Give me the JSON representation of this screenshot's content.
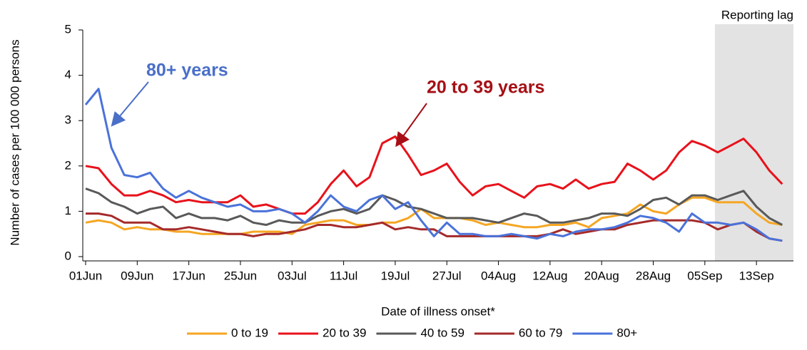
{
  "chart_data": {
    "type": "line",
    "y_label": "Number of cases per 100 000 persons",
    "x_label": "Date of illness onset*",
    "categories": [
      "01Jun",
      null,
      null,
      null,
      "09Jun",
      null,
      null,
      null,
      "17Jun",
      null,
      null,
      null,
      "25Jun",
      null,
      null,
      null,
      "03Jul",
      null,
      null,
      null,
      "11Jul",
      null,
      null,
      null,
      "19Jul",
      null,
      null,
      null,
      "27Jul",
      null,
      null,
      null,
      "04Aug",
      null,
      null,
      null,
      "12Aug",
      null,
      null,
      null,
      "20Aug",
      null,
      null,
      null,
      "28Aug",
      null,
      null,
      null,
      "05Sep",
      null,
      null,
      null,
      "13Sep",
      null,
      null
    ],
    "ylim": [
      0,
      5
    ],
    "yticks": [
      0,
      1,
      2,
      3,
      4,
      5
    ],
    "shaded_region": {
      "label": "Reporting lag",
      "start": 49
    },
    "annotations": [
      {
        "text": "80+ years",
        "color": "#4a6fc9"
      },
      {
        "text": "20 to 39 years",
        "color": "#a50f15"
      }
    ],
    "series": [
      {
        "name": "0 to 19",
        "color": "#f5a623",
        "values": [
          0.75,
          0.8,
          0.75,
          0.6,
          0.65,
          0.6,
          0.6,
          0.55,
          0.55,
          0.5,
          0.5,
          0.5,
          0.5,
          0.55,
          0.55,
          0.55,
          0.5,
          0.7,
          0.75,
          0.8,
          0.8,
          0.7,
          0.7,
          0.75,
          0.75,
          0.85,
          1.05,
          0.85,
          0.85,
          0.85,
          0.8,
          0.7,
          0.75,
          0.7,
          0.65,
          0.65,
          0.7,
          0.7,
          0.75,
          0.65,
          0.85,
          0.9,
          0.95,
          1.15,
          1.0,
          0.95,
          1.15,
          1.3,
          1.3,
          1.2,
          1.2,
          1.2,
          0.95,
          0.75,
          0.7
        ]
      },
      {
        "name": "20 to 39",
        "color": "#e8121b",
        "values": [
          2.0,
          1.95,
          1.6,
          1.35,
          1.35,
          1.45,
          1.35,
          1.2,
          1.25,
          1.2,
          1.2,
          1.2,
          1.35,
          1.1,
          1.15,
          1.05,
          0.95,
          0.95,
          1.2,
          1.6,
          1.9,
          1.55,
          1.75,
          2.5,
          2.65,
          2.25,
          1.8,
          1.9,
          2.05,
          1.65,
          1.35,
          1.55,
          1.6,
          1.45,
          1.3,
          1.55,
          1.6,
          1.5,
          1.7,
          1.5,
          1.6,
          1.65,
          2.05,
          1.9,
          1.7,
          1.9,
          2.3,
          2.55,
          2.45,
          2.3,
          2.45,
          2.6,
          2.3,
          1.9,
          1.6
        ]
      },
      {
        "name": "40 to 59",
        "color": "#595959",
        "values": [
          1.5,
          1.4,
          1.2,
          1.1,
          0.95,
          1.05,
          1.1,
          0.85,
          0.95,
          0.85,
          0.85,
          0.8,
          0.9,
          0.75,
          0.7,
          0.8,
          0.75,
          0.75,
          0.9,
          1.0,
          1.05,
          0.95,
          1.05,
          1.35,
          1.25,
          1.1,
          1.05,
          0.95,
          0.85,
          0.85,
          0.85,
          0.8,
          0.75,
          0.85,
          0.95,
          0.9,
          0.75,
          0.75,
          0.8,
          0.85,
          0.95,
          0.95,
          0.9,
          1.05,
          1.25,
          1.3,
          1.15,
          1.35,
          1.35,
          1.25,
          1.35,
          1.45,
          1.1,
          0.85,
          0.7
        ]
      },
      {
        "name": "60 to 79",
        "color": "#a52a2a",
        "values": [
          0.95,
          0.95,
          0.9,
          0.75,
          0.75,
          0.75,
          0.6,
          0.6,
          0.65,
          0.6,
          0.55,
          0.5,
          0.5,
          0.45,
          0.5,
          0.5,
          0.55,
          0.6,
          0.7,
          0.7,
          0.65,
          0.65,
          0.7,
          0.75,
          0.6,
          0.65,
          0.6,
          0.6,
          0.45,
          0.45,
          0.45,
          0.45,
          0.45,
          0.45,
          0.45,
          0.45,
          0.5,
          0.6,
          0.5,
          0.55,
          0.6,
          0.6,
          0.7,
          0.75,
          0.8,
          0.8,
          0.8,
          0.8,
          0.75,
          0.6,
          0.7,
          0.75,
          0.55,
          0.4,
          0.35
        ]
      },
      {
        "name": "80+",
        "color": "#4a72d9",
        "values": [
          3.35,
          3.7,
          2.4,
          1.8,
          1.75,
          1.85,
          1.5,
          1.3,
          1.45,
          1.3,
          1.2,
          1.1,
          1.15,
          1.0,
          1.0,
          1.05,
          0.95,
          0.75,
          1.0,
          1.35,
          1.1,
          1.0,
          1.25,
          1.35,
          1.05,
          1.2,
          0.8,
          0.45,
          0.75,
          0.5,
          0.5,
          0.45,
          0.45,
          0.5,
          0.45,
          0.4,
          0.5,
          0.45,
          0.55,
          0.6,
          0.6,
          0.65,
          0.75,
          0.9,
          0.85,
          0.75,
          0.55,
          0.95,
          0.75,
          0.75,
          0.7,
          0.75,
          0.6,
          0.4,
          0.35
        ]
      }
    ]
  }
}
